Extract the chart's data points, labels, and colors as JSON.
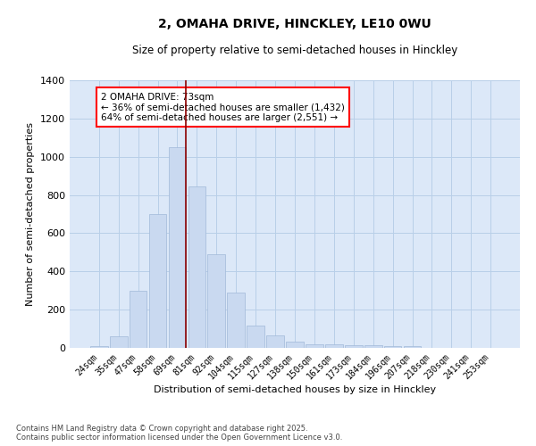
{
  "title": "2, OMAHA DRIVE, HINCKLEY, LE10 0WU",
  "subtitle": "Size of property relative to semi-detached houses in Hinckley",
  "xlabel": "Distribution of semi-detached houses by size in Hinckley",
  "ylabel": "Number of semi-detached properties",
  "categories": [
    "24sqm",
    "35sqm",
    "47sqm",
    "58sqm",
    "69sqm",
    "81sqm",
    "92sqm",
    "104sqm",
    "115sqm",
    "127sqm",
    "138sqm",
    "150sqm",
    "161sqm",
    "173sqm",
    "184sqm",
    "196sqm",
    "207sqm",
    "218sqm",
    "230sqm",
    "241sqm",
    "253sqm"
  ],
  "values": [
    10,
    60,
    300,
    700,
    1050,
    845,
    490,
    290,
    115,
    65,
    35,
    20,
    20,
    15,
    12,
    10,
    10,
    0,
    0,
    0,
    0
  ],
  "bar_color": "#c9d9f0",
  "bar_edge_color": "#a0b8d8",
  "grid_color": "#b8cfe8",
  "bg_color": "#dce8f8",
  "vline_color": "#8b0000",
  "annotation_text": "2 OMAHA DRIVE: 73sqm\n← 36% of semi-detached houses are smaller (1,432)\n64% of semi-detached houses are larger (2,551) →",
  "annotation_box_color": "white",
  "annotation_box_edge": "red",
  "ylim": [
    0,
    1400
  ],
  "yticks": [
    0,
    200,
    400,
    600,
    800,
    1000,
    1200,
    1400
  ],
  "footer_line1": "Contains HM Land Registry data © Crown copyright and database right 2025.",
  "footer_line2": "Contains public sector information licensed under the Open Government Licence v3.0."
}
